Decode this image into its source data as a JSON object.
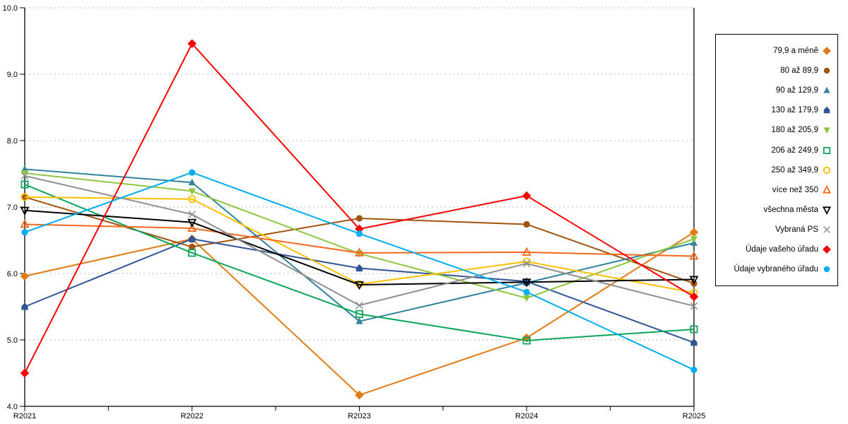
{
  "chart_data": {
    "type": "line",
    "categories": [
      "R2021",
      "R2022",
      "R2023",
      "R2024",
      "R2025"
    ],
    "ylim": [
      4.0,
      10.0
    ],
    "yticks": [
      "10.0",
      "9.0",
      "8.0",
      "7.0",
      "6.0",
      "5.0",
      "4.0"
    ],
    "grid": "horizontal-dashed",
    "legend_position": "right",
    "colors": {
      "axis": "#000000",
      "gridline": "#b5b5b5",
      "background": "#ffffff"
    },
    "series": [
      {
        "name": "79,9 a méně",
        "color": "#E07C15",
        "marker": "diamond",
        "filled": true,
        "values": [
          5.96,
          6.52,
          4.17,
          5.03,
          6.62
        ]
      },
      {
        "name": "80 až 89,9",
        "color": "#A0540F",
        "marker": "circle",
        "filled": true,
        "values": [
          7.15,
          6.4,
          6.83,
          6.74,
          5.85
        ]
      },
      {
        "name": "90 až 129,9",
        "color": "#31849B",
        "marker": "triangle-up",
        "filled": true,
        "values": [
          7.57,
          7.37,
          5.28,
          5.86,
          6.46
        ]
      },
      {
        "name": "130 až 179,9",
        "color": "#2F5597",
        "marker": "pentagon",
        "filled": true,
        "values": [
          5.5,
          6.52,
          6.08,
          5.88,
          4.96
        ]
      },
      {
        "name": "180 až 205,9",
        "color": "#8DC63F",
        "marker": "triangle-down",
        "filled": true,
        "values": [
          7.51,
          7.24,
          6.3,
          5.63,
          6.52
        ]
      },
      {
        "name": "206 až 249,9",
        "color": "#0AA55B",
        "marker": "square",
        "filled": false,
        "values": [
          7.34,
          6.31,
          5.39,
          4.99,
          5.16
        ]
      },
      {
        "name": "250 až 349,9",
        "color": "#FFC000",
        "marker": "circle",
        "filled": false,
        "values": [
          7.15,
          7.12,
          5.84,
          6.18,
          5.71
        ]
      },
      {
        "name": "více než 350",
        "color": "#F8681C",
        "marker": "triangle-up",
        "filled": false,
        "values": [
          6.74,
          6.68,
          6.31,
          6.32,
          6.26
        ]
      },
      {
        "name": "všechna města",
        "color": "#000000",
        "marker": "triangle-down",
        "filled": false,
        "values": [
          6.95,
          6.77,
          5.83,
          5.87,
          5.91
        ]
      },
      {
        "name": "Vybraná PS",
        "color": "#8F8F8F",
        "marker": "x",
        "filled": false,
        "values": [
          7.47,
          6.89,
          5.52,
          6.15,
          5.51
        ]
      },
      {
        "name": "Údaje vašeho úřadu",
        "color": "#FA0000",
        "marker": "diamond",
        "filled": true,
        "values": [
          4.5,
          9.46,
          6.67,
          7.17,
          5.65
        ]
      },
      {
        "name": "Údaje vybraného úřadu",
        "color": "#00AEEF",
        "marker": "circle",
        "filled": true,
        "values": [
          6.62,
          7.52,
          6.6,
          5.72,
          4.55
        ]
      }
    ]
  }
}
